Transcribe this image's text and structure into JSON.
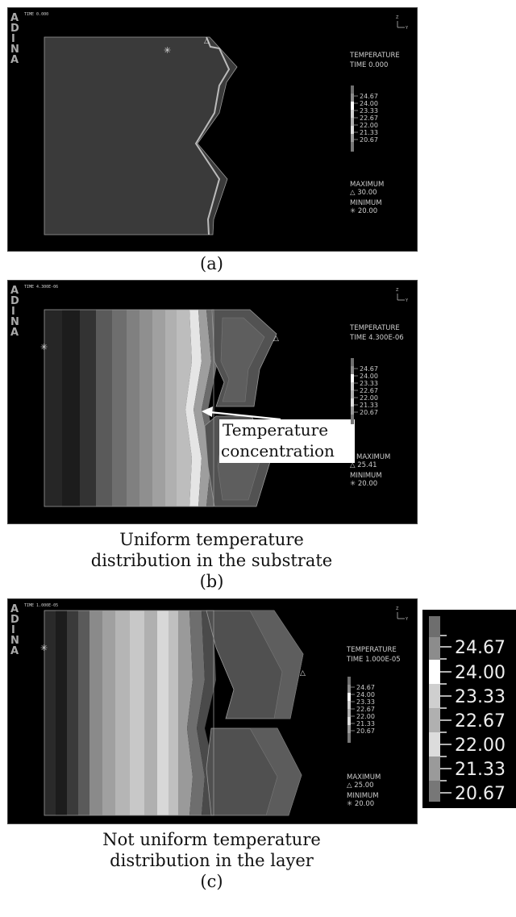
{
  "brand_letters": [
    "A",
    "D",
    "I",
    "N",
    "A"
  ],
  "panel_a": {
    "time_header": "TIME 0.000",
    "axis_z": "Z",
    "axis_y": "Y",
    "title": "TEMPERATURE",
    "time": "TIME 0.000",
    "legend_values": [
      "24.67",
      "24.00",
      "23.33",
      "22.67",
      "22.00",
      "21.33",
      "20.67"
    ],
    "max_label": "MAXIMUM",
    "max_value": "△ 30.00",
    "min_label": "MINIMUM",
    "min_value": "✳ 20.00",
    "caption": "(a)"
  },
  "panel_b": {
    "time_header": "TIME 4.300E-06",
    "axis_z": "Z",
    "axis_y": "Y",
    "title": "TEMPERATURE",
    "time": "TIME 4.300E-06",
    "legend_values": [
      "24.67",
      "24.00",
      "23.33",
      "22.67",
      "22.00",
      "21.33",
      "20.67"
    ],
    "max_label": "MAXIMUM",
    "max_value": "△ 25.41",
    "min_label": "MINIMUM",
    "min_value": "✳ 20.00",
    "annotation_line1": "Temperature",
    "annotation_line2": "concentration",
    "caption_line1": "Uniform temperature",
    "caption_line2": "distribution in the substrate",
    "caption_line3": "(b)"
  },
  "panel_c": {
    "time_header": "TIME 1.000E-05",
    "axis_z": "Z",
    "axis_y": "Y",
    "title": "TEMPERATURE",
    "time": "TIME 1.000E-05",
    "legend_values": [
      "24.67",
      "24.00",
      "23.33",
      "22.67",
      "22.00",
      "21.33",
      "20.67"
    ],
    "max_label": "MAXIMUM",
    "max_value": "△ 25.00",
    "min_label": "MINIMUM",
    "min_value": "✳ 20.00",
    "caption_line1": "Not uniform temperature",
    "caption_line2": "distribution in the layer",
    "caption_line3": "(c)"
  },
  "legend_zoom": {
    "values": [
      "24.67",
      "24.00",
      "23.33",
      "22.67",
      "22.00",
      "21.33",
      "20.67"
    ]
  }
}
